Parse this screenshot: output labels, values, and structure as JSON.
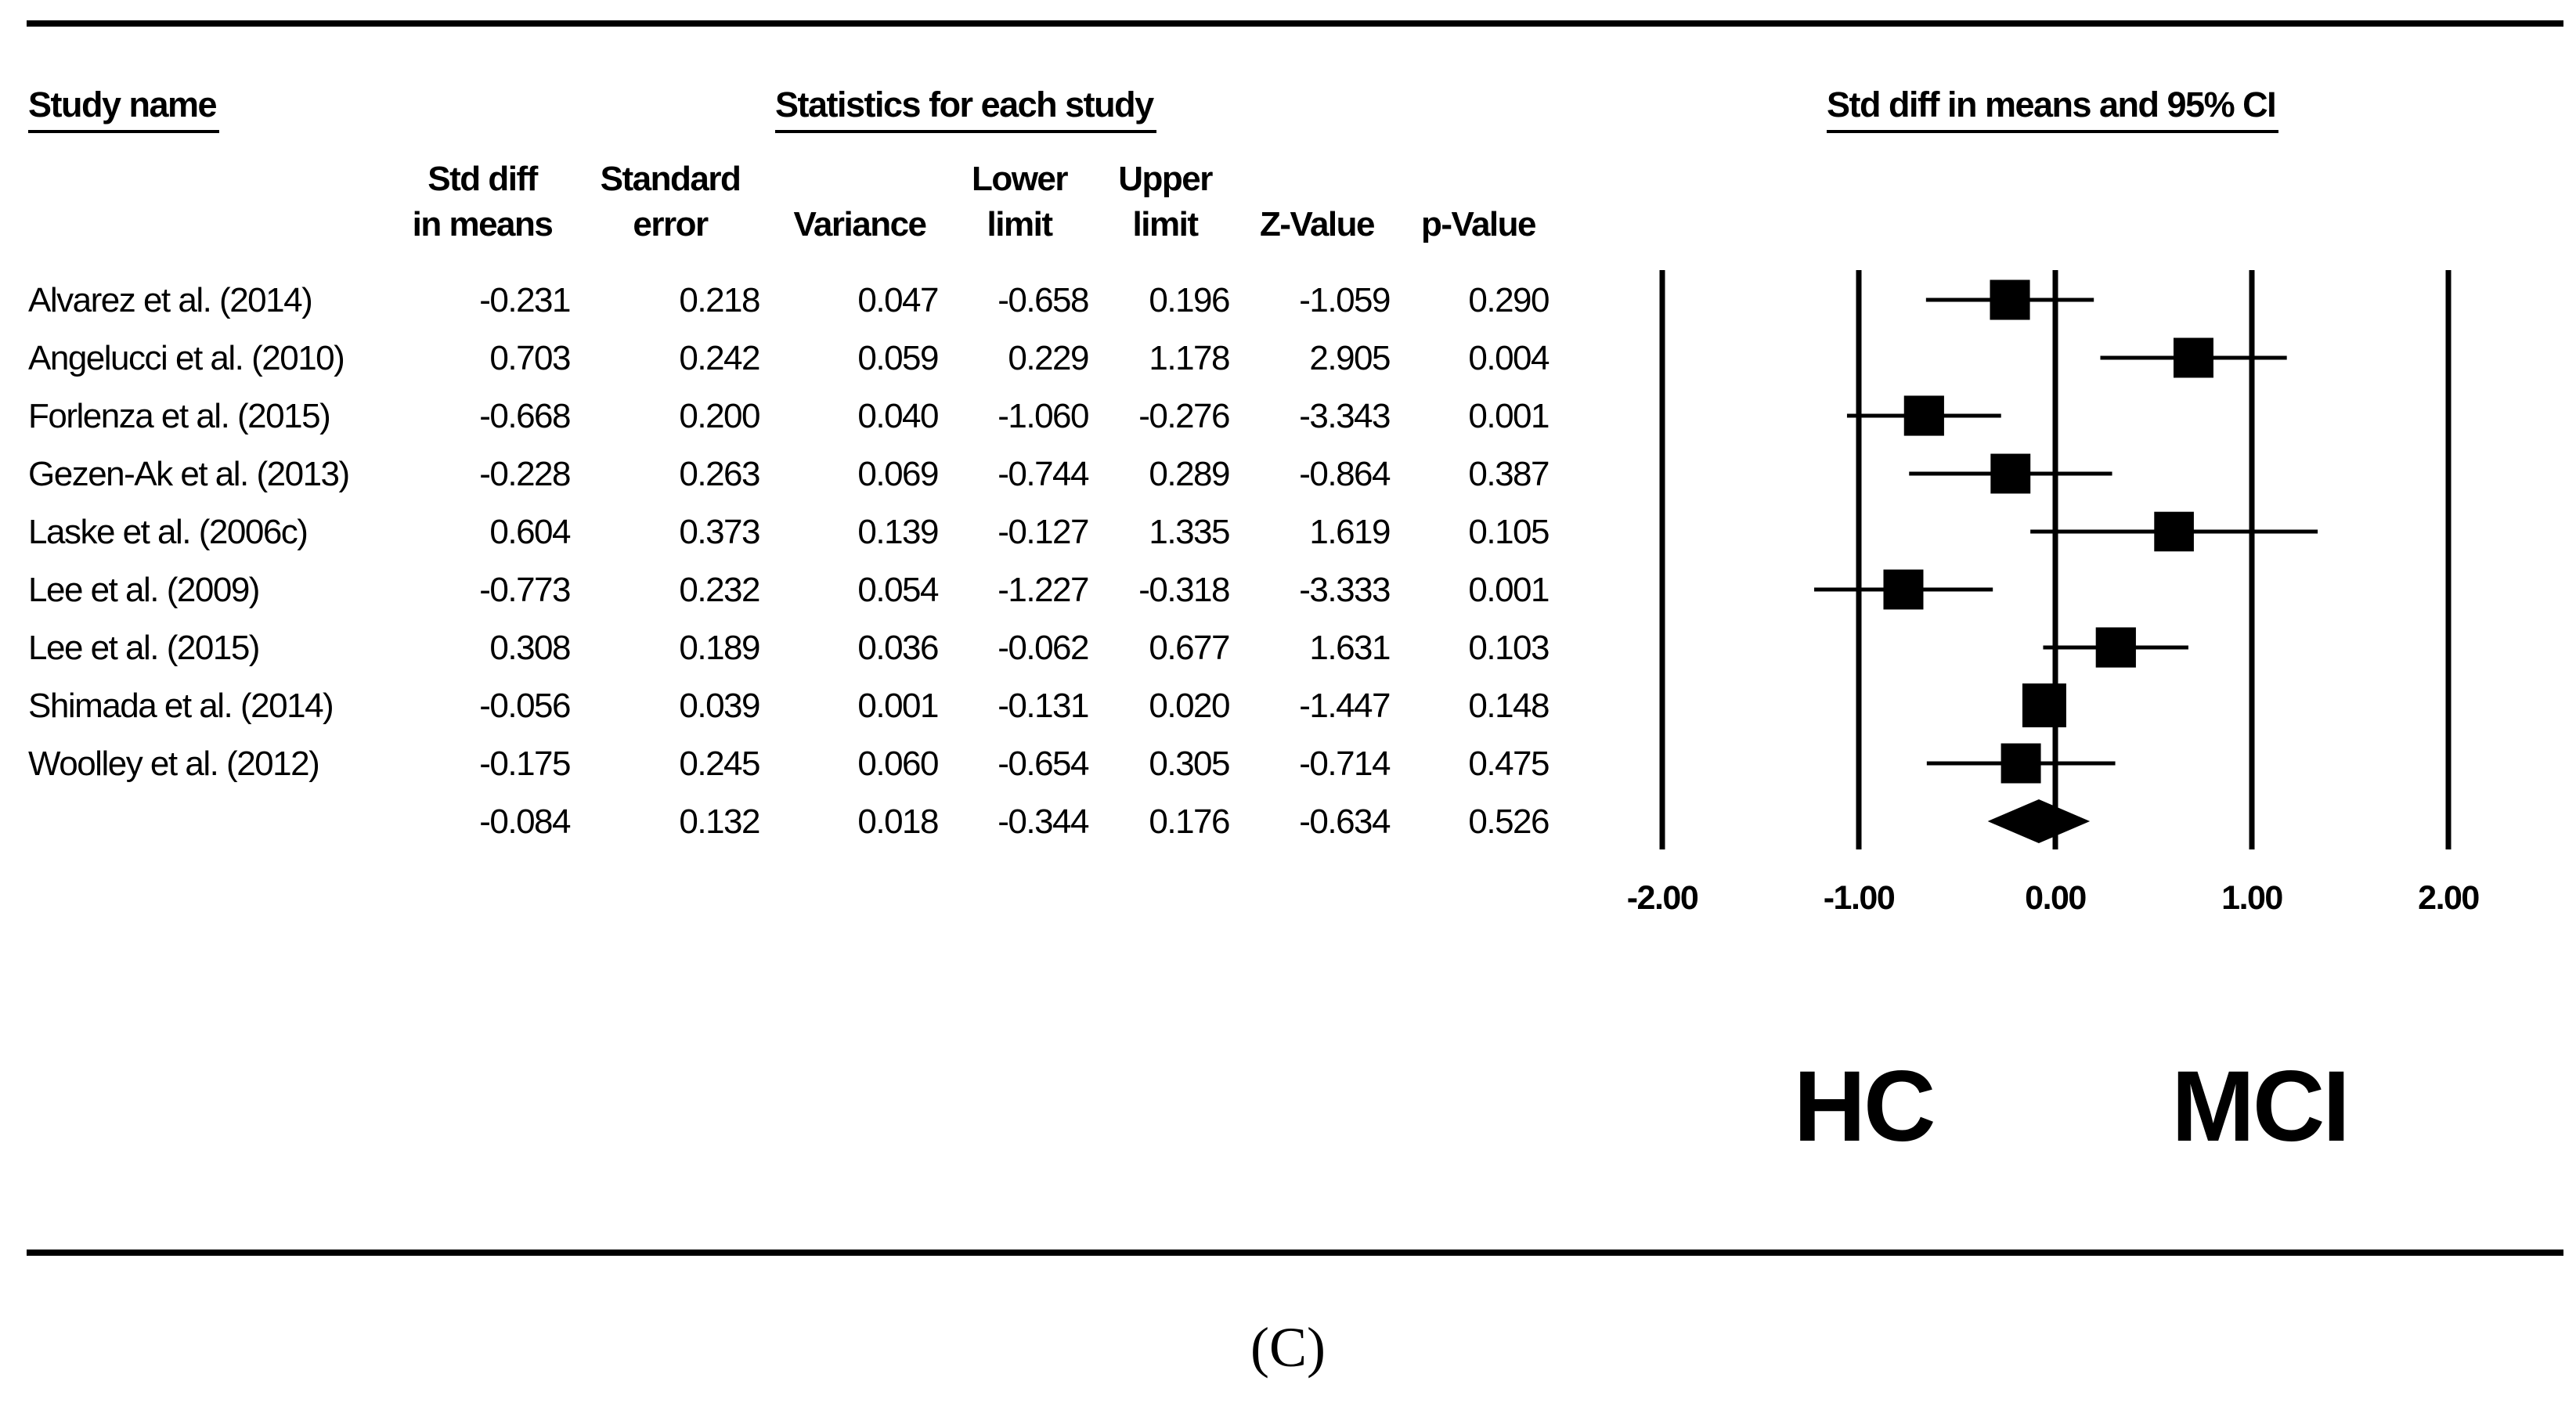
{
  "headers": {
    "study_name": "Study name",
    "statistics": "Statistics for each study",
    "forest": "Std diff in means and 95% CI"
  },
  "columns": [
    {
      "line1": "Std diff",
      "line2": "in means"
    },
    {
      "line1": "Standard",
      "line2": "error"
    },
    {
      "line1": "",
      "line2": "Variance"
    },
    {
      "line1": "Lower",
      "line2": "limit"
    },
    {
      "line1": "Upper",
      "line2": "limit"
    },
    {
      "line1": "",
      "line2": "Z-Value"
    },
    {
      "line1": "",
      "line2": "p-Value"
    }
  ],
  "rows": [
    {
      "name": "Alvarez et al. (2014)",
      "values": [
        "-0.231",
        "0.218",
        "0.047",
        "-0.658",
        "0.196",
        "-1.059",
        "0.290"
      ]
    },
    {
      "name": "Angelucci et al. (2010)",
      "values": [
        "0.703",
        "0.242",
        "0.059",
        "0.229",
        "1.178",
        "2.905",
        "0.004"
      ]
    },
    {
      "name": "Forlenza et al. (2015)",
      "values": [
        "-0.668",
        "0.200",
        "0.040",
        "-1.060",
        "-0.276",
        "-3.343",
        "0.001"
      ]
    },
    {
      "name": "Gezen-Ak et al. (2013)",
      "values": [
        "-0.228",
        "0.263",
        "0.069",
        "-0.744",
        "0.289",
        "-0.864",
        "0.387"
      ]
    },
    {
      "name": "Laske et al. (2006c)",
      "values": [
        "0.604",
        "0.373",
        "0.139",
        "-0.127",
        "1.335",
        "1.619",
        "0.105"
      ]
    },
    {
      "name": "Lee et al. (2009)",
      "values": [
        "-0.773",
        "0.232",
        "0.054",
        "-1.227",
        "-0.318",
        "-3.333",
        "0.001"
      ]
    },
    {
      "name": "Lee et al. (2015)",
      "values": [
        "0.308",
        "0.189",
        "0.036",
        "-0.062",
        "0.677",
        "1.631",
        "0.103"
      ]
    },
    {
      "name": "Shimada et al. (2014)",
      "values": [
        "-0.056",
        "0.039",
        "0.001",
        "-0.131",
        "0.020",
        "-1.447",
        "0.148"
      ]
    },
    {
      "name": "Woolley et al. (2012)",
      "values": [
        "-0.175",
        "0.245",
        "0.060",
        "-0.654",
        "0.305",
        "-0.714",
        "0.475"
      ]
    },
    {
      "name": "",
      "values": [
        "-0.084",
        "0.132",
        "0.018",
        "-0.344",
        "0.176",
        "-0.634",
        "0.526"
      ]
    }
  ],
  "favors": {
    "left": "HC",
    "right": "MCI"
  },
  "panel_label": "(C)",
  "chart_data": {
    "type": "forest",
    "title": "Std diff in means and 95% CI",
    "xlim": [
      -2,
      2
    ],
    "ticks": [
      -2,
      -1,
      0,
      1,
      2
    ],
    "tick_labels": [
      "-2.00",
      "-1.00",
      "0.00",
      "1.00",
      "2.00"
    ],
    "studies": [
      {
        "name": "Alvarez et al. (2014)",
        "effect": -0.231,
        "lower": -0.658,
        "upper": 0.196,
        "se": 0.218
      },
      {
        "name": "Angelucci et al. (2010)",
        "effect": 0.703,
        "lower": 0.229,
        "upper": 1.178,
        "se": 0.242
      },
      {
        "name": "Forlenza et al. (2015)",
        "effect": -0.668,
        "lower": -1.06,
        "upper": -0.276,
        "se": 0.2
      },
      {
        "name": "Gezen-Ak et al. (2013)",
        "effect": -0.228,
        "lower": -0.744,
        "upper": 0.289,
        "se": 0.263
      },
      {
        "name": "Laske et al. (2006c)",
        "effect": 0.604,
        "lower": -0.127,
        "upper": 1.335,
        "se": 0.373
      },
      {
        "name": "Lee et al. (2009)",
        "effect": -0.773,
        "lower": -1.227,
        "upper": -0.318,
        "se": 0.232
      },
      {
        "name": "Lee et al. (2015)",
        "effect": 0.308,
        "lower": -0.062,
        "upper": 0.677,
        "se": 0.189
      },
      {
        "name": "Shimada et al. (2014)",
        "effect": -0.056,
        "lower": -0.131,
        "upper": 0.02,
        "se": 0.039
      },
      {
        "name": "Woolley et al. (2012)",
        "effect": -0.175,
        "lower": -0.654,
        "upper": 0.305,
        "se": 0.245
      }
    ],
    "summary": {
      "effect": -0.084,
      "lower": -0.344,
      "upper": 0.176
    },
    "favors_left": "HC",
    "favors_right": "MCI"
  }
}
